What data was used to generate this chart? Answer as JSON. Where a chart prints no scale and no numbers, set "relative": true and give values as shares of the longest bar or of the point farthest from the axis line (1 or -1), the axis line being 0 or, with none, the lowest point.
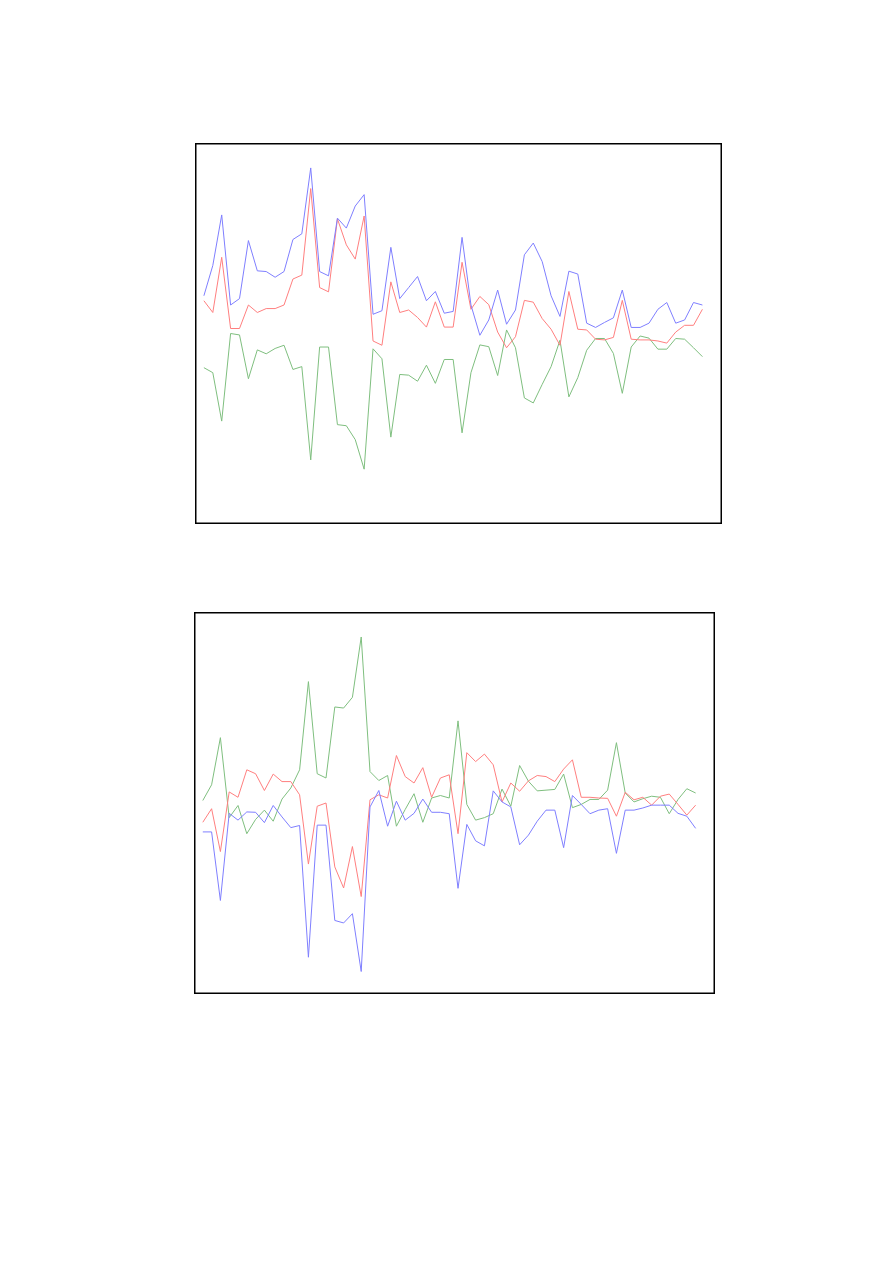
{
  "chart_data": [
    {
      "type": "line",
      "relative": true,
      "marker": "none",
      "categories": [
        null,
        null,
        null,
        null,
        null,
        null,
        null,
        null,
        null,
        null,
        null,
        null,
        null,
        null,
        null,
        null,
        null,
        null,
        null,
        null,
        null,
        null,
        null,
        null,
        null,
        null,
        null,
        null,
        null,
        null,
        null,
        null,
        null,
        null,
        null,
        null,
        null,
        null,
        null,
        null,
        null,
        null,
        null,
        null,
        null,
        null,
        null,
        null,
        null,
        null,
        null,
        null,
        null,
        null,
        null,
        null,
        null
      ],
      "series": [
        {
          "color": "#7f7fff",
          "values": [
            0.641,
            0.726,
            0.868,
            0.615,
            0.633,
            0.796,
            0.711,
            0.709,
            0.693,
            0.709,
            0.799,
            0.815,
            1.0,
            0.709,
            0.697,
            0.859,
            0.831,
            0.893,
            0.925,
            0.589,
            0.599,
            0.777,
            0.633,
            0.664,
            0.695,
            0.627,
            0.653,
            0.592,
            0.597,
            0.805,
            0.615,
            0.53,
            0.573,
            0.657,
            0.561,
            0.601,
            0.756,
            0.789,
            0.737,
            0.641,
            0.583,
            0.71,
            0.702,
            0.564,
            0.552,
            0.566,
            0.579,
            0.657,
            0.552,
            0.552,
            0.564,
            0.603,
            0.622,
            0.564,
            0.573,
            0.622,
            0.615
          ]
        },
        {
          "color": "#ff7f7f",
          "values": [
            0.627,
            0.594,
            0.749,
            0.549,
            0.549,
            0.615,
            0.594,
            0.605,
            0.605,
            0.615,
            0.688,
            0.699,
            0.942,
            0.664,
            0.652,
            0.857,
            0.784,
            0.744,
            0.865,
            0.514,
            0.502,
            0.68,
            0.594,
            0.601,
            0.58,
            0.553,
            0.624,
            0.553,
            0.553,
            0.735,
            0.603,
            0.639,
            0.616,
            0.539,
            0.495,
            0.526,
            0.628,
            0.623,
            0.577,
            0.547,
            0.502,
            0.653,
            0.547,
            0.545,
            0.519,
            0.517,
            0.524,
            0.628,
            0.519,
            0.517,
            0.517,
            0.514,
            0.508,
            0.539,
            0.558,
            0.558,
            0.603
          ]
        },
        {
          "color": "#7fbf7f",
          "values": [
            0.439,
            0.425,
            0.289,
            0.535,
            0.531,
            0.408,
            0.489,
            0.478,
            0.493,
            0.502,
            0.434,
            0.442,
            0.18,
            0.497,
            0.497,
            0.279,
            0.276,
            0.237,
            0.154,
            0.492,
            0.464,
            0.244,
            0.42,
            0.418,
            0.401,
            0.446,
            0.395,
            0.462,
            0.462,
            0.256,
            0.425,
            0.503,
            0.498,
            0.417,
            0.545,
            0.495,
            0.354,
            0.34,
            0.392,
            0.442,
            0.516,
            0.357,
            0.411,
            0.488,
            0.521,
            0.521,
            0.479,
            0.367,
            0.497,
            0.528,
            0.522,
            0.491,
            0.491,
            0.521,
            0.519,
            0.495,
            0.47
          ]
        }
      ]
    },
    {
      "type": "line",
      "relative": true,
      "marker": "none",
      "categories": [
        null,
        null,
        null,
        null,
        null,
        null,
        null,
        null,
        null,
        null,
        null,
        null,
        null,
        null,
        null,
        null,
        null,
        null,
        null,
        null,
        null,
        null,
        null,
        null,
        null,
        null,
        null,
        null,
        null,
        null,
        null,
        null,
        null,
        null,
        null,
        null,
        null,
        null,
        null,
        null,
        null,
        null,
        null,
        null,
        null,
        null,
        null,
        null,
        null,
        null,
        null,
        null,
        null,
        null,
        null,
        null,
        null
      ],
      "series": [
        {
          "color": "#7f7fff",
          "values": [
            0.454,
            0.454,
            0.262,
            0.506,
            0.487,
            0.51,
            0.509,
            0.48,
            0.528,
            0.496,
            0.466,
            0.472,
            0.103,
            0.473,
            0.473,
            0.206,
            0.199,
            0.225,
            0.063,
            0.524,
            0.57,
            0.47,
            0.54,
            0.487,
            0.506,
            0.546,
            0.509,
            0.509,
            0.505,
            0.296,
            0.475,
            0.429,
            0.415,
            0.569,
            0.538,
            0.524,
            0.418,
            0.445,
            0.484,
            0.515,
            0.515,
            0.41,
            0.556,
            0.531,
            0.505,
            0.515,
            0.519,
            0.394,
            0.515,
            0.515,
            0.521,
            0.529,
            0.529,
            0.529,
            0.506,
            0.498,
            0.464
          ]
        },
        {
          "color": "#ff7f7f",
          "values": [
            0.481,
            0.519,
            0.399,
            0.566,
            0.551,
            0.628,
            0.617,
            0.57,
            0.616,
            0.595,
            0.595,
            0.558,
            0.364,
            0.526,
            0.535,
            0.356,
            0.297,
            0.413,
            0.273,
            0.544,
            0.558,
            0.549,
            0.668,
            0.609,
            0.591,
            0.634,
            0.551,
            0.605,
            0.614,
            0.449,
            0.676,
            0.651,
            0.672,
            0.642,
            0.538,
            0.591,
            0.568,
            0.597,
            0.612,
            0.609,
            0.595,
            0.63,
            0.656,
            0.551,
            0.551,
            0.549,
            0.548,
            0.498,
            0.565,
            0.544,
            0.551,
            0.529,
            0.554,
            0.56,
            0.531,
            0.501,
            0.529
          ]
        },
        {
          "color": "#7fbf7f",
          "values": [
            0.542,
            0.586,
            0.718,
            0.494,
            0.528,
            0.449,
            0.489,
            0.515,
            0.484,
            0.546,
            0.577,
            0.628,
            0.875,
            0.617,
            0.605,
            0.804,
            0.801,
            0.831,
            1.0,
            0.623,
            0.598,
            0.612,
            0.47,
            0.517,
            0.561,
            0.481,
            0.549,
            0.556,
            0.549,
            0.765,
            0.531,
            0.487,
            0.494,
            0.505,
            0.574,
            0.526,
            0.64,
            0.596,
            0.569,
            0.571,
            0.573,
            0.616,
            0.522,
            0.531,
            0.545,
            0.545,
            0.571,
            0.704,
            0.563,
            0.538,
            0.547,
            0.554,
            0.551,
            0.505,
            0.545,
            0.575,
            0.563
          ]
        }
      ]
    }
  ]
}
